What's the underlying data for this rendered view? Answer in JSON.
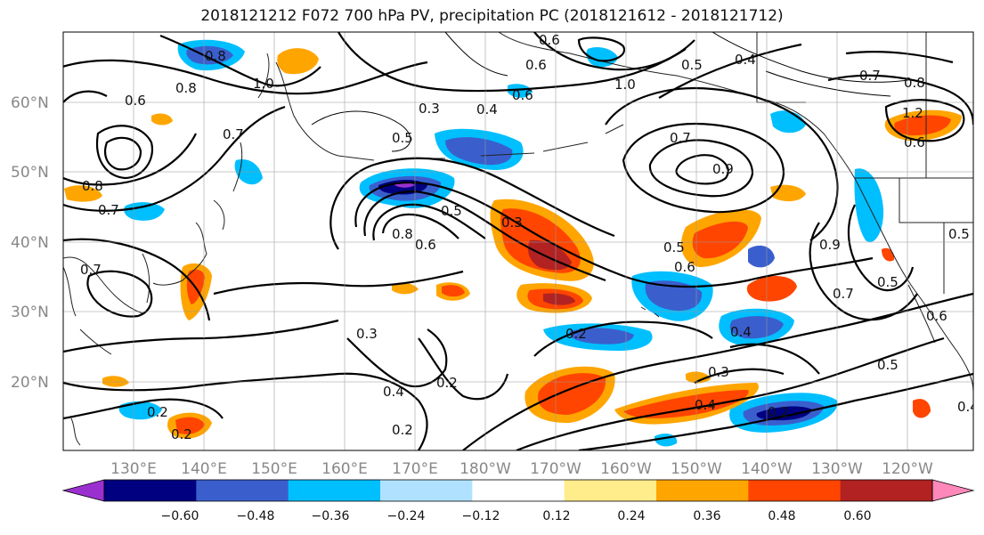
{
  "title": "2018121212 F072 700 hPa PV, precipitation PC (2018121612 - 2018121712)",
  "lat_labels": [
    "60°N",
    "50°N",
    "40°N",
    "30°N",
    "20°N"
  ],
  "lon_labels": [
    "130°E",
    "140°E",
    "150°E",
    "160°E",
    "170°E",
    "180°W",
    "170°W",
    "160°W",
    "150°W",
    "140°W",
    "130°W",
    "120°W"
  ],
  "colorbar": {
    "colors": [
      "#9b30d0",
      "#000080",
      "#3a5fcd",
      "#00bfff",
      "#b0e2ff",
      "#ffffff",
      "#ffec8b",
      "#ffa500",
      "#ff4500",
      "#b22222",
      "#ff88bb"
    ],
    "tick_labels": [
      "−0.60",
      "−0.48",
      "−0.36",
      "−0.24",
      "−0.12",
      "0.12",
      "0.24",
      "0.36",
      "0.48",
      "0.60"
    ]
  },
  "contour_labels": [
    "0.8",
    "1.0",
    "0.6",
    "0.8",
    "0.7",
    "0.8",
    "0.7",
    "0.3",
    "0.5",
    "0.4",
    "0.6",
    "0.5",
    "0.3",
    "0.8",
    "0.6",
    "0.7",
    "0.9",
    "0.5",
    "0.6",
    "0.6",
    "0.7",
    "0.8",
    "1.2",
    "0.6",
    "0.5",
    "0.9",
    "0.7",
    "0.5",
    "0.6",
    "0.5",
    "0.3",
    "0.4",
    "0.2",
    "0.2",
    "0.2",
    "0.4",
    "0.3",
    "0.2",
    "0.4",
    "0.2",
    "0.2",
    "0.7",
    "0.5",
    "0.4",
    "0.4",
    "0.6",
    "1.0"
  ]
}
